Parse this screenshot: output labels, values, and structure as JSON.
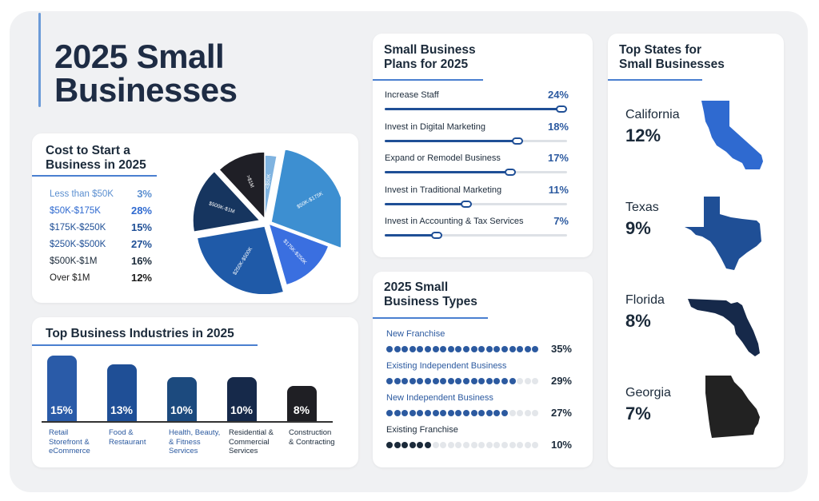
{
  "main_title": {
    "line1": "2025 Small",
    "line2": "Businesses"
  },
  "colors": {
    "dark_navy": "#1b2a3a",
    "navy": "#1f4f96",
    "blue": "#2c5aa0",
    "bright_blue": "#3a6fe0",
    "sky": "#3d8fd1",
    "black": "#222222"
  },
  "chart_data": [
    {
      "type": "pie",
      "title": "Cost to Start a Business in 2025",
      "categories": [
        "Less than $50K",
        "$50K-$175K",
        "$175K-$250K",
        "$250K-$500K",
        "$500K-$1M",
        "Over $1M"
      ],
      "values": [
        3,
        28,
        15,
        27,
        16,
        12
      ],
      "slice_labels": [
        "<$50K",
        "$50K-$175K",
        "$175K-$250K",
        "$250K-$500K",
        "$500K-$1M",
        ">$1M"
      ],
      "value_labels": [
        "3%",
        "28%",
        "15%",
        "27%",
        "16%",
        "12%"
      ],
      "colors": [
        "#7fb3e0",
        "#3d8fd1",
        "#3a6fe0",
        "#1f5aa8",
        "#16355f",
        "#1f1f26"
      ],
      "legend_colors": [
        "#5b8fd0",
        "#2f6ad0",
        "#1f4f96",
        "#1f4f96",
        "#1b2a3a",
        "#1b1b1b"
      ]
    },
    {
      "type": "bar",
      "title": "Top Business Industries in 2025",
      "categories": [
        "Retail Storefront & eCommerce",
        "Food & Restaurant",
        "Health, Beauty, & Fitness Services",
        "Residential & Commercial Services",
        "Construction & Contracting"
      ],
      "label_lines": [
        [
          "Retail",
          "Storefront &",
          "eCommerce"
        ],
        [
          "Food &",
          "Restaurant"
        ],
        [
          "Health, Beauty,",
          "& Fitness",
          "Services"
        ],
        [
          "Residential &",
          "Commercial",
          "Services"
        ],
        [
          "Construction",
          "& Contracting"
        ]
      ],
      "values": [
        15,
        13,
        10,
        10,
        8
      ],
      "value_labels": [
        "15%",
        "13%",
        "10%",
        "10%",
        "8%"
      ],
      "colors": [
        "#2a5ba8",
        "#1f4f96",
        "#1c4a7e",
        "#16294a",
        "#1f1f24"
      ],
      "ylim": [
        0,
        15
      ]
    },
    {
      "type": "bar",
      "title": "Small Business Plans for 2025",
      "categories": [
        "Increase Staff",
        "Invest in Digital Marketing",
        "Expand or Remodel Business",
        "Invest in Traditional Marketing",
        "Invest in Accounting & Tax Services"
      ],
      "values": [
        24,
        18,
        17,
        11,
        7
      ],
      "value_labels": [
        "24%",
        "18%",
        "17%",
        "11%",
        "7%"
      ],
      "ylim": [
        0,
        24
      ]
    },
    {
      "type": "bar",
      "title": "2025 Small Business Types",
      "categories": [
        "New Franchise",
        "Existing Independent Business",
        "New Independent Business",
        "Existing Franchise"
      ],
      "values": [
        35,
        29,
        27,
        10
      ],
      "value_labels": [
        "35%",
        "29%",
        "27%",
        "10%"
      ],
      "dot_total": 20,
      "dots_filled": [
        20,
        17,
        16,
        6
      ]
    }
  ],
  "cost_card": {
    "title_line1": "Cost to Start a",
    "title_line2": "Business in 2025"
  },
  "industries_card": {
    "title": "Top Business Industries in 2025"
  },
  "plans_card": {
    "title_line1": "Small Business",
    "title_line2": "Plans for 2025"
  },
  "types_card": {
    "title_line1": "2025 Small",
    "title_line2": "Business Types"
  },
  "states_card": {
    "title_line1": "Top States for",
    "title_line2": "Small Businesses",
    "states": [
      {
        "name": "California",
        "value": "12%",
        "color": "#2f6ad0",
        "icon": "california-map-icon"
      },
      {
        "name": "Texas",
        "value": "9%",
        "color": "#1f4f96",
        "icon": "texas-map-icon"
      },
      {
        "name": "Florida",
        "value": "8%",
        "color": "#16294a",
        "icon": "florida-map-icon"
      },
      {
        "name": "Georgia",
        "value": "7%",
        "color": "#222222",
        "icon": "georgia-map-icon"
      }
    ]
  }
}
